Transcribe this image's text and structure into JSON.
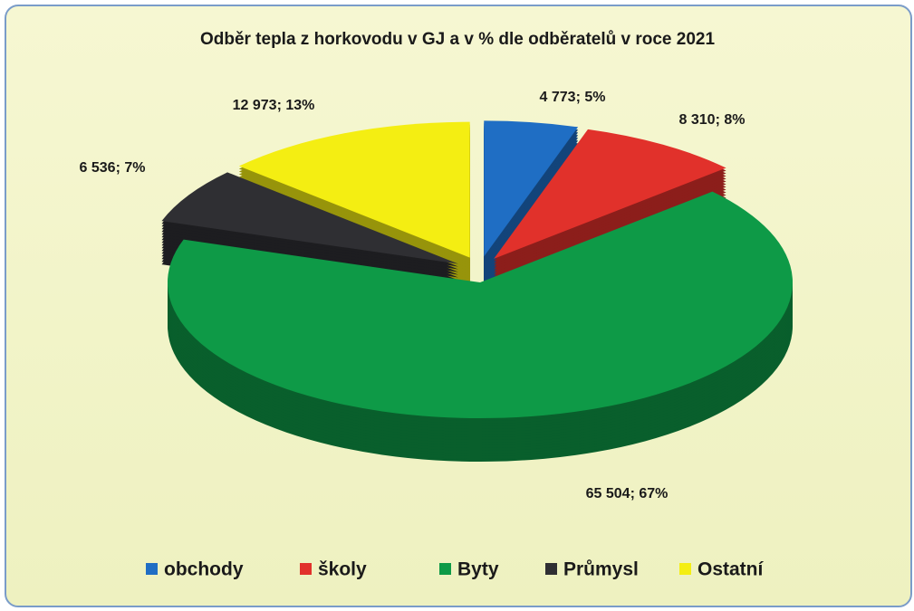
{
  "chart_data": {
    "type": "pie3d",
    "title": "Odběr tepla z horkovodu v GJ a v % dle odběratelů v roce 2021",
    "categories": [
      "obchody",
      "školy",
      "Byty",
      "Průmysl",
      "Ostatní"
    ],
    "values": [
      4773,
      8310,
      65504,
      6536,
      12973
    ],
    "value_labels": [
      "4 773; 5%",
      "8 310; 8%",
      "65 504; 67%",
      "6 536; 7%",
      "12 973; 13%"
    ],
    "colors": [
      "#1f6ec4",
      "#e1312b",
      "#0e9a47",
      "#2f2f33",
      "#f4ee12"
    ],
    "legend": "bottom"
  }
}
